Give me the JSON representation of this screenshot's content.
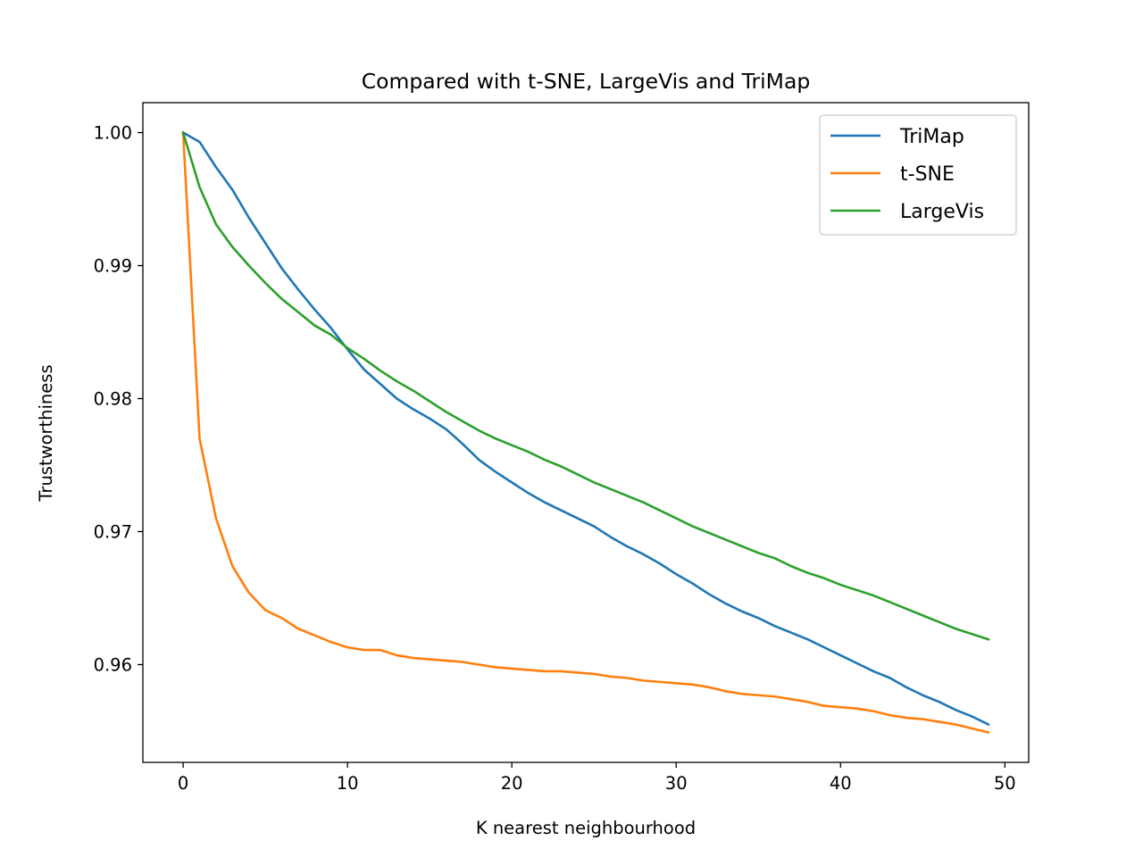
{
  "chart_data": {
    "type": "line",
    "title": "Compared with t-SNE, LargeVis and TriMap",
    "xlabel": "K nearest neighbourhood",
    "ylabel": "Trustworthiness",
    "xlim": [
      -2.45,
      51.45
    ],
    "ylim": [
      0.95265,
      1.00225
    ],
    "xticks": [
      0,
      10,
      20,
      30,
      40,
      50
    ],
    "xtick_labels": [
      "0",
      "10",
      "20",
      "30",
      "40",
      "50"
    ],
    "yticks": [
      0.96,
      0.97,
      0.98,
      0.99,
      1.0
    ],
    "ytick_labels": [
      "0.96",
      "0.97",
      "0.98",
      "0.99",
      "1.00"
    ],
    "grid": false,
    "legend_position": "top-right",
    "x": [
      0,
      1,
      2,
      3,
      4,
      5,
      6,
      7,
      8,
      9,
      10,
      11,
      12,
      13,
      14,
      15,
      16,
      17,
      18,
      19,
      20,
      21,
      22,
      23,
      24,
      25,
      26,
      27,
      28,
      29,
      30,
      31,
      32,
      33,
      34,
      35,
      36,
      37,
      38,
      39,
      40,
      41,
      42,
      43,
      44,
      45,
      46,
      47,
      48,
      49
    ],
    "series": [
      {
        "name": "TriMap",
        "color": "#1f77b4",
        "values": [
          1.0,
          0.9993,
          0.9974,
          0.9957,
          0.9936,
          0.9917,
          0.9898,
          0.9882,
          0.9867,
          0.9853,
          0.9837,
          0.9822,
          0.9811,
          0.98,
          0.9792,
          0.9785,
          0.9777,
          0.9766,
          0.9754,
          0.9745,
          0.9737,
          0.9729,
          0.9722,
          0.9716,
          0.971,
          0.9704,
          0.9696,
          0.9689,
          0.9683,
          0.9676,
          0.9668,
          0.9661,
          0.9653,
          0.9646,
          0.964,
          0.9635,
          0.9629,
          0.9624,
          0.9619,
          0.9613,
          0.9607,
          0.9601,
          0.9595,
          0.959,
          0.9583,
          0.9577,
          0.9572,
          0.9566,
          0.9561,
          0.9555
        ]
      },
      {
        "name": "t-SNE",
        "color": "#ff7f0e",
        "values": [
          1.0,
          0.977,
          0.971,
          0.9674,
          0.9654,
          0.9641,
          0.9635,
          0.9627,
          0.9622,
          0.9617,
          0.9613,
          0.9611,
          0.9611,
          0.9607,
          0.9605,
          0.9604,
          0.9603,
          0.9602,
          0.96,
          0.9598,
          0.9597,
          0.9596,
          0.9595,
          0.9595,
          0.9594,
          0.9593,
          0.9591,
          0.959,
          0.9588,
          0.9587,
          0.9586,
          0.9585,
          0.9583,
          0.958,
          0.9578,
          0.9577,
          0.9576,
          0.9574,
          0.9572,
          0.9569,
          0.9568,
          0.9567,
          0.9565,
          0.9562,
          0.956,
          0.9559,
          0.9557,
          0.9555,
          0.9552,
          0.9549
        ]
      },
      {
        "name": "LargeVis",
        "color": "#2ca02c",
        "values": [
          1.0,
          0.9959,
          0.9931,
          0.9914,
          0.99,
          0.9887,
          0.9875,
          0.9865,
          0.9855,
          0.9848,
          0.9838,
          0.983,
          0.9821,
          0.9813,
          0.9806,
          0.9798,
          0.979,
          0.9783,
          0.9776,
          0.977,
          0.9765,
          0.976,
          0.9754,
          0.9749,
          0.9743,
          0.9737,
          0.9732,
          0.9727,
          0.9722,
          0.9716,
          0.971,
          0.9704,
          0.9699,
          0.9694,
          0.9689,
          0.9684,
          0.968,
          0.9674,
          0.9669,
          0.9665,
          0.966,
          0.9656,
          0.9652,
          0.9647,
          0.9642,
          0.9637,
          0.9632,
          0.9627,
          0.9623,
          0.9619
        ]
      }
    ]
  }
}
